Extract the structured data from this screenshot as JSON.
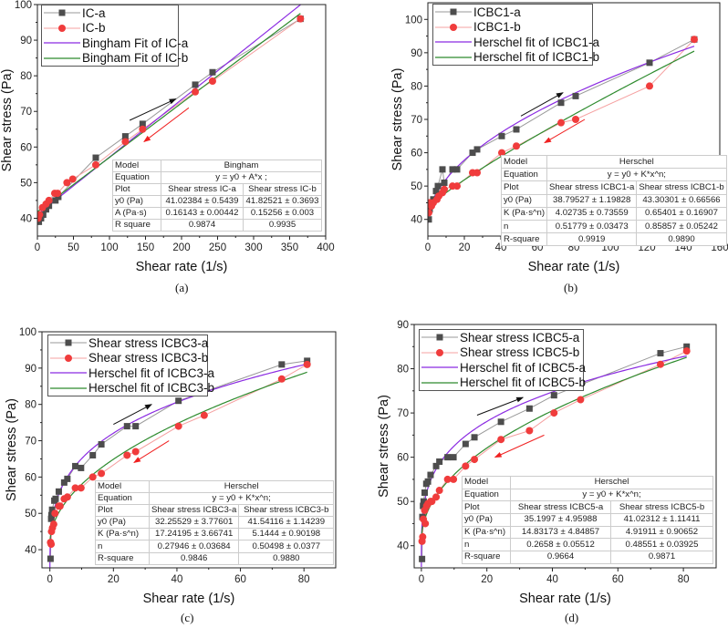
{
  "chart_data": [
    {
      "type": "line",
      "caption": "(a)",
      "xlabel": "Shear rate (1/s)",
      "ylabel": "Shear stress (Pa)",
      "xlim": [
        0,
        400
      ],
      "ylim": [
        35,
        100
      ],
      "xticks": [
        0,
        50,
        100,
        150,
        200,
        250,
        300,
        350,
        400
      ],
      "yticks": [
        40,
        50,
        60,
        70,
        80,
        90,
        100
      ],
      "legend_position": "top-left",
      "series": [
        {
          "name": "IC-a",
          "kind": "data",
          "marker": "square",
          "color": "#4d4d4d",
          "line_color": "#999999",
          "points": [
            [
              2,
              39
            ],
            [
              5,
              40
            ],
            [
              8,
              41
            ],
            [
              12,
              42.5
            ],
            [
              16,
              43.5
            ],
            [
              25,
              45
            ],
            [
              29,
              46
            ],
            [
              81,
              57
            ],
            [
              122,
              63
            ],
            [
              146,
              66.5
            ],
            [
              219,
              77.5
            ],
            [
              243,
              81
            ],
            [
              365,
              96
            ]
          ]
        },
        {
          "name": "IC-b",
          "kind": "data",
          "marker": "circle",
          "color": "#f03c3c",
          "line_color": "#f5a0a0",
          "points": [
            [
              1,
              40
            ],
            [
              3,
              41
            ],
            [
              7,
              43
            ],
            [
              12,
              44
            ],
            [
              16,
              45
            ],
            [
              24,
              47
            ],
            [
              28,
              47
            ],
            [
              41,
              50
            ],
            [
              49,
              51
            ],
            [
              81,
              55
            ],
            [
              122,
              61.5
            ],
            [
              146,
              65
            ],
            [
              219,
              75.5
            ],
            [
              243,
              78.5
            ],
            [
              365,
              96
            ]
          ]
        },
        {
          "name": "Bingham Fit of IC-a",
          "kind": "fit",
          "model": "bingham",
          "color": "#8b2be2",
          "params": {
            "y0": 41.02384,
            "A": 0.16143
          },
          "xrange": [
            0,
            365
          ]
        },
        {
          "name": "Bingham Fit of IC-b",
          "kind": "fit",
          "model": "bingham",
          "color": "#2e8b2e",
          "params": {
            "y0": 41.82521,
            "A": 0.15256
          },
          "xrange": [
            0,
            365
          ]
        }
      ],
      "arrows": [
        {
          "color": "#111111",
          "from": [
            128,
            67.5
          ],
          "to": [
            192,
            73.5
          ]
        },
        {
          "color": "#f02020",
          "from": [
            210,
            71
          ],
          "to": [
            148,
            61.5
          ]
        }
      ],
      "table": {
        "rows": [
          [
            "Model",
            "Bingham"
          ],
          [
            "Equation",
            "y = y0 + A*x ;"
          ],
          [
            "Plot",
            "Shear stress IC-a",
            "Shear stress IC-b"
          ],
          [
            "y0 (Pa)",
            "41.02384 ± 0.5439",
            "41.82521 ± 0.3693"
          ],
          [
            "A (Pa·s)",
            "0.16143 ± 0.00442",
            "0.15256 ± 0.003"
          ],
          [
            "R square",
            "0.9874",
            "0.9935"
          ]
        ]
      }
    },
    {
      "type": "line",
      "caption": "(b)",
      "xlabel": "Shear rate (1/s)",
      "ylabel": "Shear stress (Pa)",
      "xlim": [
        0,
        160
      ],
      "ylim": [
        35,
        105
      ],
      "xticks": [
        0,
        20,
        40,
        60,
        80,
        100,
        120,
        140,
        160
      ],
      "yticks": [
        40,
        50,
        60,
        70,
        80,
        90,
        100
      ],
      "legend_position": "top-left",
      "series": [
        {
          "name": "ICBC1-a",
          "kind": "data",
          "marker": "square",
          "color": "#4d4d4d",
          "line_color": "#999999",
          "points": [
            [
              0.5,
              40
            ],
            [
              1,
              43
            ],
            [
              2,
              45
            ],
            [
              3,
              46
            ],
            [
              4.5,
              48.5
            ],
            [
              5.5,
              50
            ],
            [
              8,
              55
            ],
            [
              9,
              51
            ],
            [
              13.5,
              55
            ],
            [
              16,
              55
            ],
            [
              24.5,
              60
            ],
            [
              27,
              61
            ],
            [
              40.5,
              65
            ],
            [
              48.5,
              67
            ],
            [
              73,
              75
            ],
            [
              81,
              77
            ],
            [
              121.5,
              87
            ],
            [
              146,
              94
            ]
          ]
        },
        {
          "name": "ICBC1-b",
          "kind": "data",
          "marker": "circle",
          "color": "#f03c3c",
          "line_color": "#f5a0a0",
          "points": [
            [
              0.5,
              42
            ],
            [
              1,
              45
            ],
            [
              2,
              44
            ],
            [
              3,
              45
            ],
            [
              5,
              46
            ],
            [
              6,
              47
            ],
            [
              8,
              48
            ],
            [
              9,
              49
            ],
            [
              13.5,
              50
            ],
            [
              16,
              50
            ],
            [
              24.5,
              54
            ],
            [
              27,
              54
            ],
            [
              40.5,
              60
            ],
            [
              48.5,
              62
            ],
            [
              73,
              69
            ],
            [
              81,
              70
            ],
            [
              121.5,
              80
            ],
            [
              146,
              94
            ]
          ]
        },
        {
          "name": "Herschel fit of ICBC1-a",
          "kind": "fit",
          "model": "herschel",
          "color": "#8b2be2",
          "params": {
            "y0": 38.79527,
            "K": 4.02735,
            "n": 0.51779
          },
          "xrange": [
            0,
            146
          ]
        },
        {
          "name": "Herschel fit of ICBC1-b",
          "kind": "fit",
          "model": "herschel",
          "color": "#2e8b2e",
          "params": {
            "y0": 43.30301,
            "K": 0.65401,
            "n": 0.85857
          },
          "xrange": [
            0,
            146
          ]
        }
      ],
      "arrows": [
        {
          "color": "#111111",
          "from": [
            51,
            71
          ],
          "to": [
            74,
            78
          ]
        },
        {
          "color": "#f02020",
          "from": [
            86,
            70
          ],
          "to": [
            64,
            63
          ]
        }
      ],
      "table": {
        "rows": [
          [
            "Model",
            "Herschel"
          ],
          [
            "Equation",
            "y = y0 + K*x^n;"
          ],
          [
            "Plot",
            "Shear stress ICBC1-a",
            "Shear stress ICBC1-b"
          ],
          [
            "y0 (Pa)",
            "38.79527 ± 1.19828",
            "43.30301 ± 0.66566"
          ],
          [
            "K (Pa·s^n)",
            "4.02735 ± 0.73559",
            "0.65401 ± 0.16907"
          ],
          [
            "n",
            "0.51779 ± 0.03473",
            "0.85857 ± 0.05242"
          ],
          [
            "R-square",
            "0.9919",
            "0.9890"
          ]
        ]
      }
    },
    {
      "type": "line",
      "caption": "(c)",
      "xlabel": "Shear rate (1/s)",
      "ylabel": "Shear stress (Pa)",
      "xlim": [
        -2.5,
        90
      ],
      "ylim": [
        35,
        100
      ],
      "xticks": [
        0,
        20,
        40,
        60,
        80
      ],
      "yticks": [
        40,
        50,
        60,
        70,
        80,
        90,
        100
      ],
      "legend_position": "top-left",
      "series": [
        {
          "name": "Shear stress ICBC3-a",
          "kind": "data",
          "marker": "square",
          "color": "#4d4d4d",
          "line_color": "#999999",
          "points": [
            [
              0.2,
              37.5
            ],
            [
              0.4,
              48.5
            ],
            [
              0.5,
              49.5
            ],
            [
              0.7,
              51
            ],
            [
              1.4,
              53.5
            ],
            [
              1.8,
              54
            ],
            [
              2.8,
              56
            ],
            [
              4.5,
              58.5
            ],
            [
              5.5,
              59.5
            ],
            [
              8,
              63
            ],
            [
              9.8,
              62.5
            ],
            [
              13.5,
              66
            ],
            [
              16.2,
              69
            ],
            [
              24.3,
              74
            ],
            [
              27,
              74
            ],
            [
              40.5,
              81
            ],
            [
              73,
              91
            ],
            [
              81,
              92
            ]
          ]
        },
        {
          "name": "Shear stress ICBC3-b",
          "kind": "data",
          "marker": "circle",
          "color": "#f03c3c",
          "line_color": "#f5a0a0",
          "points": [
            [
              0.2,
              42
            ],
            [
              0.4,
              41.5
            ],
            [
              0.5,
              45
            ],
            [
              0.8,
              46
            ],
            [
              1.2,
              47
            ],
            [
              1.6,
              50
            ],
            [
              2.8,
              52
            ],
            [
              3.2,
              52
            ],
            [
              4.5,
              54
            ],
            [
              5.5,
              54.5
            ],
            [
              8,
              57
            ],
            [
              9.8,
              57
            ],
            [
              13.5,
              60
            ],
            [
              16.2,
              61
            ],
            [
              24.3,
              66
            ],
            [
              27,
              67
            ],
            [
              40.5,
              74
            ],
            [
              48.6,
              77
            ],
            [
              73,
              87
            ],
            [
              81,
              91
            ]
          ]
        },
        {
          "name": "Herschel fit of ICBC3-a",
          "kind": "fit",
          "model": "herschel",
          "color": "#8b2be2",
          "params": {
            "y0": 32.25529,
            "K": 17.24195,
            "n": 0.27946
          },
          "xrange": [
            0,
            81
          ]
        },
        {
          "name": "Herschel fit of ICBC3-b",
          "kind": "fit",
          "model": "herschel",
          "color": "#2e8b2e",
          "params": {
            "y0": 41.54116,
            "K": 5.1444,
            "n": 0.50498
          },
          "xrange": [
            0,
            81
          ]
        }
      ],
      "arrows": [
        {
          "color": "#111111",
          "from": [
            20,
            74.5
          ],
          "to": [
            32,
            80
          ]
        },
        {
          "color": "#f02020",
          "from": [
            37.5,
            70
          ],
          "to": [
            26.5,
            64
          ]
        }
      ],
      "table": {
        "rows": [
          [
            "Model",
            "Herschel"
          ],
          [
            "Equation",
            "y = y0 + K*x^n;"
          ],
          [
            "Plot",
            "Shear stress ICBC3-a",
            "Shear stress ICBC3-b"
          ],
          [
            "y0 (Pa)",
            "32.25529 ± 3.77601",
            "41.54116 ± 1.14239"
          ],
          [
            "K (Pa·s^n)",
            "17.24195 ± 3.66741",
            "5.1444 ± 0.90198"
          ],
          [
            "n",
            "0.27946 ± 0.03684",
            "0.50498 ± 0.0377"
          ],
          [
            "R-square",
            "0.9846",
            "0.9880"
          ]
        ]
      }
    },
    {
      "type": "line",
      "caption": "(d)",
      "xlabel": "Shear rate (1/s)",
      "ylabel": "Shear stress (Pa)",
      "xlim": [
        -2.2,
        90
      ],
      "ylim": [
        35,
        90
      ],
      "xticks": [
        0,
        20,
        40,
        60,
        80
      ],
      "yticks": [
        40,
        50,
        60,
        70,
        80,
        90
      ],
      "legend_position": "top-left",
      "series": [
        {
          "name": "Shear stress ICBC5-a",
          "kind": "data",
          "marker": "square",
          "color": "#4d4d4d",
          "line_color": "#999999",
          "points": [
            [
              0.2,
              37
            ],
            [
              0.3,
              46.5
            ],
            [
              0.5,
              49
            ],
            [
              0.7,
              50
            ],
            [
              1,
              52
            ],
            [
              1.5,
              54
            ],
            [
              2,
              54.5
            ],
            [
              2.8,
              56
            ],
            [
              4.5,
              58
            ],
            [
              5.5,
              59
            ],
            [
              8,
              60
            ],
            [
              9.8,
              60
            ],
            [
              13.5,
              63
            ],
            [
              16.2,
              64.5
            ],
            [
              24.3,
              68
            ],
            [
              33,
              71
            ],
            [
              40.5,
              74
            ],
            [
              73,
              83.5
            ],
            [
              81,
              85
            ]
          ]
        },
        {
          "name": "Shear stress ICBC5-b",
          "kind": "data",
          "marker": "circle",
          "color": "#f03c3c",
          "line_color": "#f5a0a0",
          "points": [
            [
              0.2,
              41
            ],
            [
              0.4,
              42
            ],
            [
              0.6,
              46
            ],
            [
              1,
              48
            ],
            [
              1.2,
              45
            ],
            [
              1.6,
              49
            ],
            [
              2,
              49.5
            ],
            [
              2.8,
              50
            ],
            [
              3.2,
              50
            ],
            [
              4.5,
              51
            ],
            [
              5.5,
              52.5
            ],
            [
              8,
              55
            ],
            [
              9.8,
              55
            ],
            [
              13.5,
              58
            ],
            [
              16.2,
              59.5
            ],
            [
              24.3,
              64
            ],
            [
              33,
              66
            ],
            [
              40.5,
              70
            ],
            [
              48.6,
              73
            ],
            [
              73,
              81
            ],
            [
              81,
              84
            ]
          ]
        },
        {
          "name": "Herschel fit of ICBC5-a",
          "kind": "fit",
          "model": "herschel",
          "color": "#8b2be2",
          "params": {
            "y0": 35.1997,
            "K": 14.83173,
            "n": 0.2658
          },
          "xrange": [
            0,
            81
          ]
        },
        {
          "name": "Herschel fit of ICBC5-b",
          "kind": "fit",
          "model": "herschel",
          "color": "#2e8b2e",
          "params": {
            "y0": 41.02312,
            "K": 4.91911,
            "n": 0.48551
          },
          "xrange": [
            0,
            81
          ]
        }
      ],
      "arrows": [
        {
          "color": "#111111",
          "from": [
            17,
            69.5
          ],
          "to": [
            31,
            73.5
          ]
        },
        {
          "color": "#f02020",
          "from": [
            37.5,
            65
          ],
          "to": [
            22.5,
            60
          ]
        }
      ],
      "table": {
        "rows": [
          [
            "Model",
            "Herschel"
          ],
          [
            "Equation",
            "y = y0 + K*x^n;"
          ],
          [
            "Plot",
            "Shear stress ICBC5-a",
            "Shear stress ICBC5-b"
          ],
          [
            "y0 (Pa)",
            "35.1997 ± 4.95988",
            "41.02312 ± 1.11411"
          ],
          [
            "K (Pa·s^n)",
            "14.83173 ± 4.84857",
            "4.91911 ± 0.90652"
          ],
          [
            "n",
            "0.2658 ± 0.05512",
            "0.48551 ± 0.03925"
          ],
          [
            "R-square",
            "0.9664",
            "0.9871"
          ]
        ]
      }
    }
  ]
}
